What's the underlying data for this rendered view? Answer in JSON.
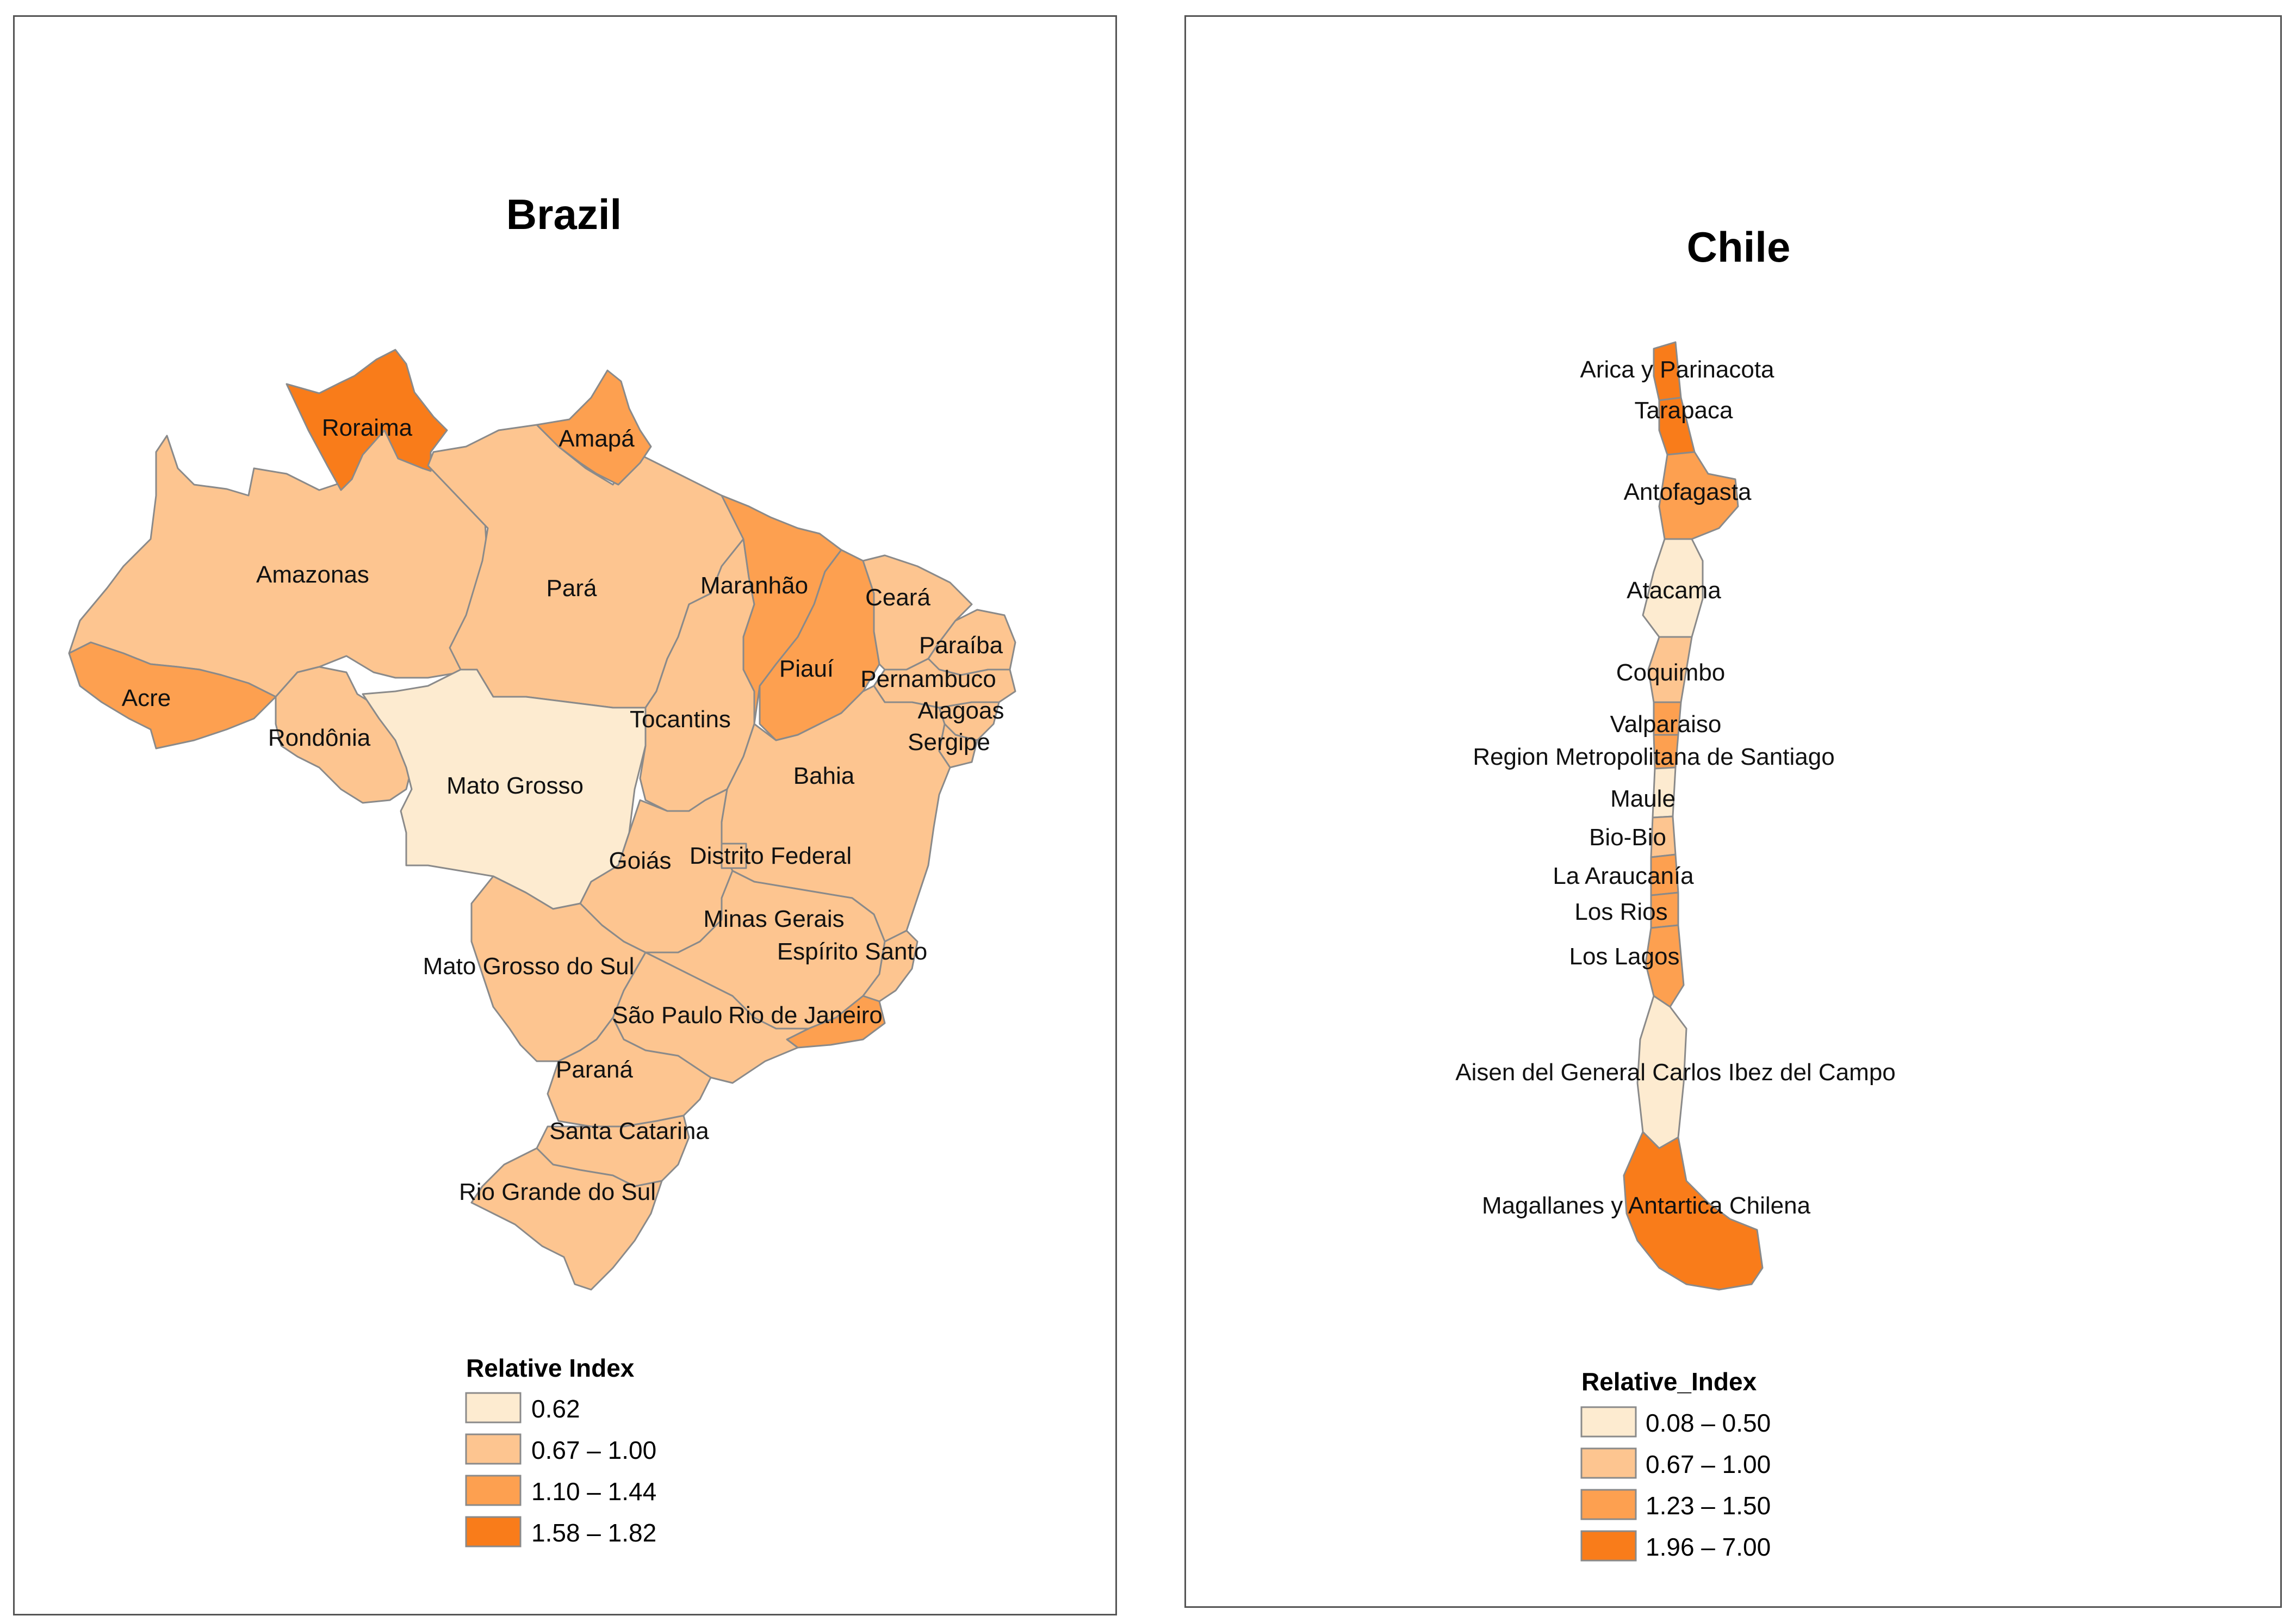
{
  "colors": {
    "class1": "#fdebd0",
    "class2": "#fdc590",
    "class3": "#fda050",
    "class4": "#f97c1a",
    "border": "#8a8a8a"
  },
  "brazil": {
    "title": "Brazil",
    "legend": {
      "title": "Relative Index",
      "items": [
        {
          "label": "0.62",
          "class": "class1"
        },
        {
          "label": "0.67 – 1.00",
          "class": "class2"
        },
        {
          "label": "1.10 – 1.44",
          "class": "class3"
        },
        {
          "label": "1.58 – 1.82",
          "class": "class4"
        }
      ]
    },
    "states": [
      {
        "name": "Roraima",
        "class": "class4"
      },
      {
        "name": "Amapá",
        "class": "class3"
      },
      {
        "name": "Amazonas",
        "class": "class2"
      },
      {
        "name": "Pará",
        "class": "class2"
      },
      {
        "name": "Maranhão",
        "class": "class3"
      },
      {
        "name": "Ceará",
        "class": "class2"
      },
      {
        "name": "Paraíba",
        "class": "class2"
      },
      {
        "name": "Piauí",
        "class": "class3"
      },
      {
        "name": "Pernambuco",
        "class": "class2"
      },
      {
        "name": "Acre",
        "class": "class3"
      },
      {
        "name": "Alagoas",
        "class": "class2"
      },
      {
        "name": "Tocantins",
        "class": "class2"
      },
      {
        "name": "Sergipe",
        "class": "class2"
      },
      {
        "name": "Rondônia",
        "class": "class2"
      },
      {
        "name": "Bahia",
        "class": "class2"
      },
      {
        "name": "Mato Grosso",
        "class": "class1"
      },
      {
        "name": "Goiás",
        "class": "class2"
      },
      {
        "name": "Distrito Federal",
        "class": "class2"
      },
      {
        "name": "Minas Gerais",
        "class": "class2"
      },
      {
        "name": "Espírito Santo",
        "class": "class2"
      },
      {
        "name": "Mato Grosso do Sul",
        "class": "class2"
      },
      {
        "name": "São Paulo",
        "class": "class2"
      },
      {
        "name": "Rio de Janeiro",
        "class": "class3"
      },
      {
        "name": "Paraná",
        "class": "class2"
      },
      {
        "name": "Santa Catarina",
        "class": "class2"
      },
      {
        "name": "Rio Grande do Sul",
        "class": "class2"
      }
    ]
  },
  "chile": {
    "title": "Chile",
    "legend": {
      "title": "Relative_Index",
      "items": [
        {
          "label": "0.08 – 0.50",
          "class": "class1"
        },
        {
          "label": "0.67 – 1.00",
          "class": "class2"
        },
        {
          "label": "1.23 – 1.50",
          "class": "class3"
        },
        {
          "label": "1.96 – 7.00",
          "class": "class4"
        }
      ]
    },
    "regions": [
      {
        "name": "Arica y Parinacota",
        "class": "class4"
      },
      {
        "name": "Tarapaca",
        "class": "class4"
      },
      {
        "name": "Antofagasta",
        "class": "class3"
      },
      {
        "name": "Atacama",
        "class": "class1"
      },
      {
        "name": "Coquimbo",
        "class": "class2"
      },
      {
        "name": "Valparaiso",
        "class": "class3"
      },
      {
        "name": "Region Metropolitana de Santiago",
        "class": "class3"
      },
      {
        "name": "Maule",
        "class": "class1"
      },
      {
        "name": "Bio-Bio",
        "class": "class2"
      },
      {
        "name": "La Araucanía",
        "class": "class3"
      },
      {
        "name": "Los Rios",
        "class": "class3"
      },
      {
        "name": "Los Lagos",
        "class": "class3"
      },
      {
        "name": "Aisen del General Carlos Ibez del Campo",
        "class": "class1"
      },
      {
        "name": "Magallanes y Antartica Chilena",
        "class": "class4"
      }
    ]
  }
}
